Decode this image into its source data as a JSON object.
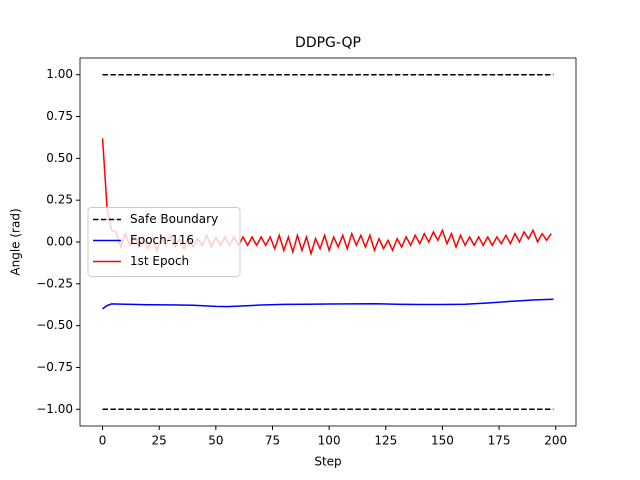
{
  "chart_data": {
    "type": "line",
    "title": "DDPG-QP",
    "x_label": "Step",
    "y_label": "Angle (rad)",
    "xlim": [
      -9.95,
      208.95
    ],
    "ylim": [
      -1.1,
      1.1
    ],
    "xticks": [
      0,
      25,
      50,
      75,
      100,
      125,
      150,
      175,
      200
    ],
    "yticks": [
      {
        "value": -1,
        "label": "−1.00"
      },
      {
        "value": -0.75,
        "label": "−0.75"
      },
      {
        "value": -0.5,
        "label": "−0.50"
      },
      {
        "value": -0.25,
        "label": "−0.25"
      },
      {
        "value": 0,
        "label": "0.00"
      },
      {
        "value": 0.25,
        "label": "0.25"
      },
      {
        "value": 0.5,
        "label": "0.50"
      },
      {
        "value": 0.75,
        "label": "0.75"
      },
      {
        "value": 1,
        "label": "1.00"
      }
    ],
    "legend": "center left",
    "series": [
      {
        "name": "Safe Boundary",
        "color": "#000000",
        "linestyle": "dashed",
        "x": [
          0,
          199,
          null,
          0,
          199
        ],
        "values": [
          1,
          1,
          null,
          -1,
          -1
        ]
      },
      {
        "name": "Epoch-116",
        "color": "#0000ff",
        "linestyle": "solid",
        "x": [
          0,
          2,
          4,
          10,
          20,
          30,
          40,
          50,
          55,
          60,
          70,
          80,
          90,
          100,
          110,
          120,
          130,
          140,
          150,
          160,
          170,
          180,
          190,
          199
        ],
        "values": [
          -0.4,
          -0.38,
          -0.37,
          -0.372,
          -0.375,
          -0.376,
          -0.378,
          -0.385,
          -0.386,
          -0.383,
          -0.377,
          -0.373,
          -0.372,
          -0.371,
          -0.37,
          -0.369,
          -0.372,
          -0.374,
          -0.374,
          -0.372,
          -0.365,
          -0.355,
          -0.347,
          -0.342
        ]
      },
      {
        "name": "1st Epoch",
        "color": "#ff0000",
        "linestyle": "solid",
        "x": [
          0,
          2,
          4,
          6,
          8,
          10,
          12,
          14,
          16,
          18,
          20,
          22,
          24,
          26,
          28,
          30,
          32,
          34,
          36,
          38,
          40,
          42,
          44,
          46,
          48,
          50,
          52,
          54,
          56,
          58,
          60,
          62,
          64,
          66,
          68,
          70,
          72,
          74,
          76,
          78,
          80,
          82,
          84,
          86,
          88,
          90,
          92,
          94,
          96,
          98,
          100,
          102,
          104,
          106,
          108,
          110,
          112,
          114,
          116,
          118,
          120,
          122,
          124,
          126,
          128,
          130,
          132,
          134,
          136,
          138,
          140,
          142,
          144,
          146,
          148,
          150,
          152,
          154,
          156,
          158,
          160,
          162,
          164,
          166,
          168,
          170,
          172,
          174,
          176,
          178,
          180,
          182,
          184,
          186,
          188,
          190,
          192,
          194,
          196,
          198
        ],
        "values": [
          0.62,
          0.2,
          0.07,
          0.06,
          -0.03,
          0.05,
          -0.02,
          0.04,
          -0.03,
          0.03,
          -0.04,
          0.03,
          -0.05,
          0.03,
          -0.02,
          0.04,
          -0.03,
          0.02,
          -0.04,
          0.03,
          -0.03,
          0.02,
          -0.02,
          0.04,
          -0.03,
          0.03,
          -0.02,
          0.03,
          -0.02,
          0.03,
          -0.02,
          0.03,
          -0.02,
          0.03,
          -0.02,
          0.03,
          -0.02,
          0.03,
          -0.04,
          0.04,
          -0.05,
          0.03,
          -0.06,
          0.04,
          -0.05,
          0.03,
          -0.07,
          0.02,
          -0.04,
          0.04,
          -0.05,
          0.03,
          -0.03,
          0.04,
          -0.04,
          0.05,
          -0.02,
          0.04,
          -0.03,
          0.04,
          -0.05,
          0.02,
          -0.04,
          0.01,
          -0.05,
          0.02,
          -0.03,
          0.03,
          -0.02,
          0.04,
          -0.01,
          0.05,
          0.0,
          0.06,
          0.01,
          0.07,
          -0.01,
          0.05,
          -0.03,
          0.04,
          -0.02,
          0.03,
          -0.02,
          0.03,
          -0.02,
          0.03,
          -0.02,
          0.03,
          -0.01,
          0.04,
          -0.01,
          0.05,
          0.0,
          0.06,
          0.02,
          0.07,
          0.0,
          0.05,
          0.01,
          0.05
        ]
      }
    ]
  }
}
